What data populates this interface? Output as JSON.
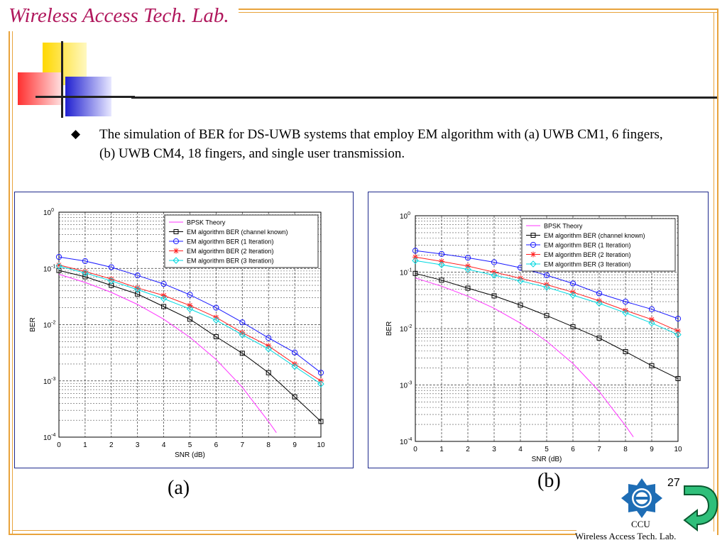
{
  "header": {
    "title": "Wireless Access Tech. Lab."
  },
  "bullet": {
    "marker": "◆",
    "text": "The simulation of BER for DS-UWB systems that employ EM algorithm with (a) UWB CM1, 6 fingers, (b) UWB  CM4, 18 fingers, and single user transmission."
  },
  "captions": {
    "a": "(a)",
    "b": "(b)"
  },
  "page_number": "27",
  "footer": {
    "org": "CCU",
    "lab": "Wireless Access Tech. Lab."
  },
  "colors": {
    "accent_frame": "#e8a33c",
    "title": "#b0175c",
    "panel_border": "#1f2a8c",
    "bpsk": "#ff33ff",
    "known": "#000000",
    "iter1": "#1a1aff",
    "iter2": "#ff2020",
    "iter3": "#00d8e0",
    "logo": "#1e6db5",
    "arrow": "#2fbf7a"
  },
  "chart_data": [
    {
      "type": "line",
      "id": "a",
      "xlabel": "SNR (dB)",
      "ylabel": "BER",
      "yscale": "log",
      "xlim": [
        0,
        10
      ],
      "ylim": [
        0.0001,
        1
      ],
      "xticks": [
        "0",
        "1",
        "2",
        "3",
        "4",
        "5",
        "6",
        "7",
        "8",
        "9",
        "10"
      ],
      "yticks": [
        {
          "base": "10",
          "exp": "0"
        },
        {
          "base": "10",
          "exp": "-1"
        },
        {
          "base": "10",
          "exp": "-2"
        },
        {
          "base": "10",
          "exp": "-3"
        },
        {
          "base": "10",
          "exp": "-4"
        }
      ],
      "grid": true,
      "legend_position": "top-right",
      "x": [
        0,
        1,
        2,
        3,
        4,
        5,
        6,
        7,
        8,
        9,
        10
      ],
      "series": [
        {
          "name": "BPSK Theory",
          "key": "bpsk",
          "marker": "none",
          "x": [
            0,
            1,
            2,
            3,
            4,
            5,
            6,
            7,
            7.5,
            8,
            8.3
          ],
          "y": [
            0.0786,
            0.0563,
            0.0375,
            0.0229,
            0.0125,
            0.00595,
            0.0024,
            0.00077,
            0.00038,
            0.00019,
            0.00012
          ]
        },
        {
          "name": "EM algorithm BER (channel known)",
          "key": "known",
          "marker": "square",
          "y": [
            0.092,
            0.071,
            0.05,
            0.035,
            0.021,
            0.0125,
            0.0061,
            0.0031,
            0.0014,
            0.00052,
            0.00019
          ]
        },
        {
          "name": "EM algorithm BER (1 Iteration)",
          "key": "iter1",
          "marker": "circle",
          "y": [
            0.16,
            0.135,
            0.105,
            0.075,
            0.053,
            0.034,
            0.02,
            0.011,
            0.0058,
            0.0032,
            0.0014
          ]
        },
        {
          "name": "EM algorithm BER (2 Iteration)",
          "key": "iter2",
          "marker": "star",
          "y": [
            0.115,
            0.088,
            0.065,
            0.045,
            0.033,
            0.022,
            0.0135,
            0.0072,
            0.0042,
            0.002,
            0.001
          ]
        },
        {
          "name": "EM algorithm BER (3 Iteration)",
          "key": "iter3",
          "marker": "diamond",
          "y": [
            0.11,
            0.083,
            0.06,
            0.042,
            0.029,
            0.019,
            0.012,
            0.0066,
            0.0037,
            0.0018,
            0.00088
          ]
        }
      ]
    },
    {
      "type": "line",
      "id": "b",
      "xlabel": "SNR (dB)",
      "ylabel": "BER",
      "yscale": "log",
      "xlim": [
        0,
        10
      ],
      "ylim": [
        0.0001,
        1
      ],
      "xticks": [
        "0",
        "1",
        "2",
        "3",
        "4",
        "5",
        "6",
        "7",
        "8",
        "9",
        "10"
      ],
      "yticks": [
        {
          "base": "10",
          "exp": "0"
        },
        {
          "base": "10",
          "exp": "-1"
        },
        {
          "base": "10",
          "exp": "-2"
        },
        {
          "base": "10",
          "exp": "-3"
        },
        {
          "base": "10",
          "exp": "-4"
        }
      ],
      "grid": true,
      "legend_position": "top-right",
      "x": [
        0,
        1,
        2,
        3,
        4,
        5,
        6,
        7,
        8,
        9,
        10
      ],
      "series": [
        {
          "name": "BPSK Theory",
          "key": "bpsk",
          "marker": "none",
          "x": [
            0,
            1,
            2,
            3,
            4,
            5,
            6,
            7,
            7.5,
            8,
            8.3
          ],
          "y": [
            0.0786,
            0.0563,
            0.0375,
            0.0229,
            0.0125,
            0.00595,
            0.0024,
            0.00077,
            0.00038,
            0.00019,
            0.00012
          ]
        },
        {
          "name": "EM algorithm BER (channel known)",
          "key": "known",
          "marker": "square",
          "y": [
            0.095,
            0.072,
            0.052,
            0.038,
            0.026,
            0.017,
            0.0108,
            0.0068,
            0.0039,
            0.0022,
            0.0013
          ]
        },
        {
          "name": "EM algorithm BER (1 Iteration)",
          "key": "iter1",
          "marker": "circle",
          "y": [
            0.24,
            0.21,
            0.18,
            0.15,
            0.12,
            0.088,
            0.063,
            0.042,
            0.03,
            0.022,
            0.015
          ]
        },
        {
          "name": "EM algorithm BER (2 Iteration)",
          "key": "iter2",
          "marker": "star",
          "y": [
            0.185,
            0.155,
            0.128,
            0.1,
            0.078,
            0.06,
            0.044,
            0.031,
            0.021,
            0.0145,
            0.009
          ]
        },
        {
          "name": "EM algorithm BER (3 Iteration)",
          "key": "iter3",
          "marker": "diamond",
          "y": [
            0.16,
            0.135,
            0.112,
            0.088,
            0.07,
            0.054,
            0.039,
            0.028,
            0.019,
            0.0125,
            0.0078
          ]
        }
      ]
    }
  ]
}
